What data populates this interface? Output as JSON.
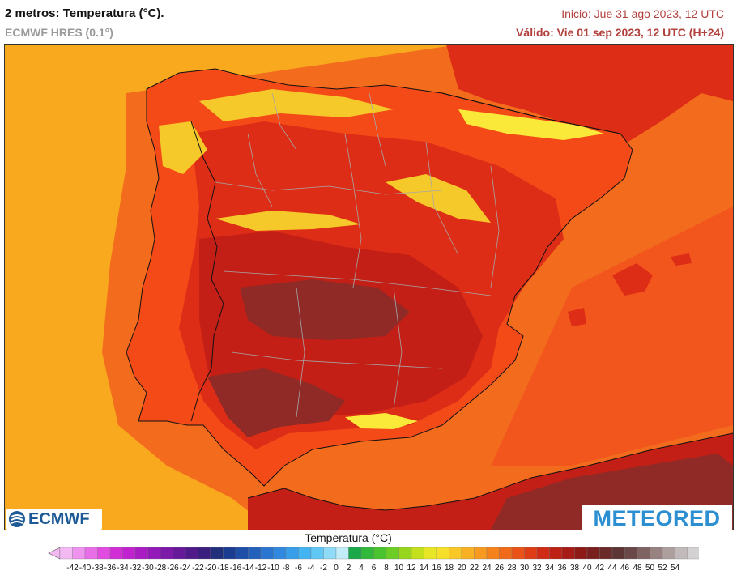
{
  "header": {
    "title": "2 metros: Temperatura (°C).",
    "model": "ECMWF HRES (0.1°)",
    "init": "Inicio: Jue 31 ago 2023, 12 UTC",
    "valid": "Válido: Vie 01 sep 2023, 12 UTC (H+24)"
  },
  "logos": {
    "left": "ECMWF",
    "right": "METEORED"
  },
  "legend": {
    "title": "Temperatura (°C)",
    "ticks": [
      "-42",
      "-40",
      "-38",
      "-36",
      "-34",
      "-32",
      "-30",
      "-28",
      "-26",
      "-24",
      "-22",
      "-20",
      "-18",
      "-16",
      "-14",
      "-12",
      "-10",
      "-8",
      "-6",
      "-4",
      "-2",
      "0",
      "2",
      "4",
      "6",
      "8",
      "10",
      "12",
      "14",
      "16",
      "18",
      "20",
      "22",
      "24",
      "26",
      "28",
      "30",
      "32",
      "34",
      "36",
      "38",
      "40",
      "42",
      "44",
      "46",
      "48",
      "50",
      "52",
      "54"
    ],
    "colors": [
      "#f3b9f3",
      "#ee93ee",
      "#e86ee8",
      "#e24be2",
      "#d22ed6",
      "#bf22ce",
      "#a91cc4",
      "#931ab8",
      "#7c19a8",
      "#661a9a",
      "#501a8a",
      "#3b1f7e",
      "#22307c",
      "#1c3c92",
      "#1f4ea8",
      "#2461bd",
      "#2a75cf",
      "#3089df",
      "#389eea",
      "#44b3f1",
      "#61c7f4",
      "#8fdaf6",
      "#c2ecf7",
      "#1aa84a",
      "#32b83b",
      "#4ac42e",
      "#6ccd24",
      "#98d61e",
      "#c4df1e",
      "#e7e626",
      "#f6df2a",
      "#f9c827",
      "#f9b124",
      "#f89a20",
      "#f6821c",
      "#f16a19",
      "#ea5317",
      "#df3d16",
      "#d02c15",
      "#bd2115",
      "#a61b16",
      "#8e1a18",
      "#79201f",
      "#6a2a29",
      "#5c3534",
      "#6a4848",
      "#7f6363",
      "#978181",
      "#ae9f9f",
      "#c2baba",
      "#d3d1d1"
    ]
  },
  "map": {
    "colors": {
      "sea_atlantic": "#f9a91d",
      "sea_coastal": "#f7b632",
      "sea_warm": "#f36c1e",
      "sea_med": "#f3561c",
      "land_warm": "#f44a18",
      "land_hot": "#de2d16",
      "land_hotter": "#c41f16",
      "land_hottest": "#8f2a26",
      "mountains_cool": "#f6c92a",
      "mountains_peak": "#fbe93a",
      "border_country": "#111111",
      "border_region": "#a7a7a7"
    }
  }
}
